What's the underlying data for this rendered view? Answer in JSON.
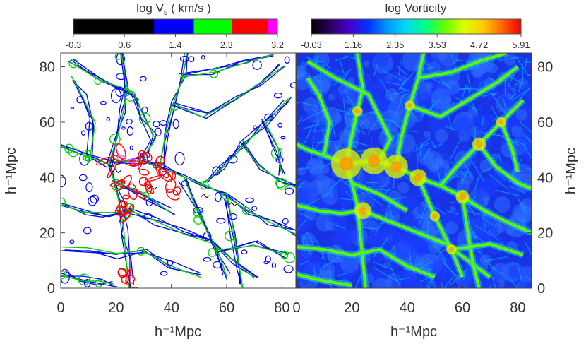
{
  "chart_data": [
    {
      "type": "heatmap",
      "panel": "left",
      "colorbar": {
        "title_prefix": "log V",
        "title_subscript": "s",
        "title_units": " ( km/s )",
        "ticks": [
          "-0.3",
          "0.6",
          "1.4",
          "2.3",
          "3.2"
        ],
        "segments": [
          {
            "color": "#000000",
            "from": 0.0,
            "to": 0.395
          },
          {
            "color": "#0000ff",
            "from": 0.395,
            "to": 0.59
          },
          {
            "color": "#00ff00",
            "from": 0.59,
            "to": 0.775
          },
          {
            "color": "#ff0000",
            "from": 0.775,
            "to": 0.955
          },
          {
            "color": "#ff00ff",
            "from": 0.955,
            "to": 1.0
          }
        ]
      },
      "xlabel": "h⁻¹Mpc",
      "ylabel": "h⁻¹Mpc",
      "xlim": [
        0,
        85
      ],
      "ylim": [
        0,
        85
      ],
      "xticks": [
        "0",
        "20",
        "40",
        "60",
        "80"
      ],
      "yticks": [
        "0",
        "20",
        "40",
        "60",
        "80"
      ],
      "field_colors": [
        "#0000ff",
        "#00d000",
        "#ff0000",
        "#ff66ff",
        "#000000"
      ]
    },
    {
      "type": "heatmap",
      "panel": "right",
      "colorbar": {
        "title": "log Vorticity",
        "ticks": [
          "-0.03",
          "1.16",
          "2.35",
          "3.53",
          "4.72",
          "5.91"
        ],
        "gradient": [
          "#000000",
          "#2a0060",
          "#4400cc",
          "#0033ff",
          "#0099ff",
          "#00ddee",
          "#00ff88",
          "#66ff00",
          "#ddff00",
          "#ffcc00",
          "#ff6600",
          "#ee0000"
        ]
      },
      "xlabel": "h⁻¹Mpc",
      "ylabel": "h⁻¹Mpc",
      "xlim": [
        0,
        85
      ],
      "ylim": [
        0,
        85
      ],
      "xticks": [
        "0",
        "20",
        "40",
        "60",
        "80"
      ],
      "yticks": [
        "0",
        "20",
        "40",
        "60",
        "80"
      ],
      "field_colors": [
        "#1a3cff",
        "#2e6bff",
        "#00b4ff",
        "#00e0d0",
        "#6cf000",
        "#d8f000",
        "#ff9900"
      ]
    }
  ]
}
